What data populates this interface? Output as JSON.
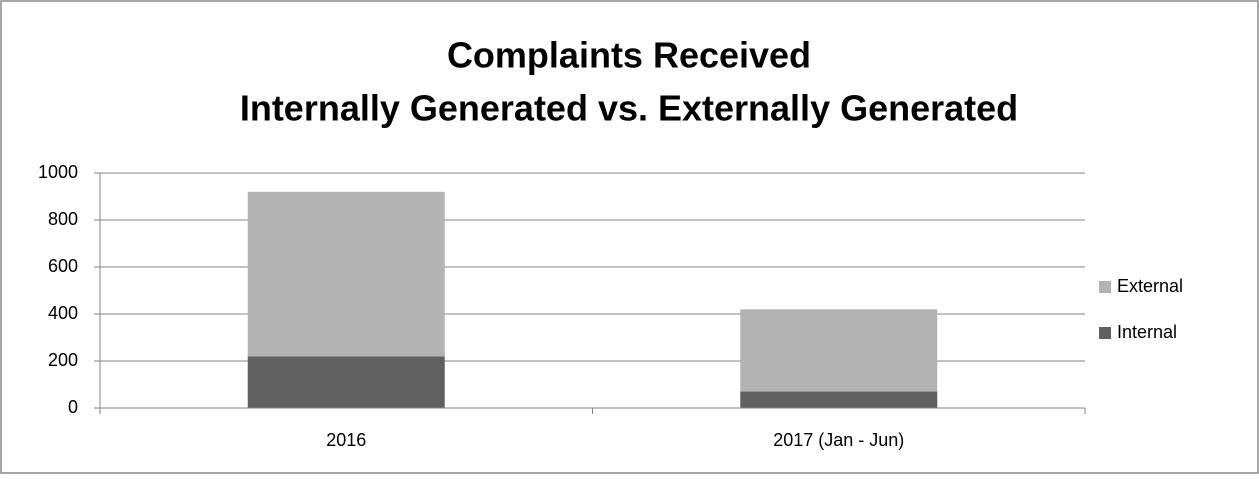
{
  "chart_data": {
    "type": "stacked_bar",
    "title": "Complaints Received",
    "subtitle": "Internally Generated vs. Externally Generated",
    "categories": [
      "2016",
      "2017 (Jan - Jun)"
    ],
    "series": [
      {
        "name": "Internal",
        "color": "#606060",
        "values": [
          220,
          70
        ]
      },
      {
        "name": "External",
        "color": "#b3b3b3",
        "values": [
          700,
          350
        ]
      }
    ],
    "ylim": [
      0,
      1000
    ],
    "yticks": [
      0,
      200,
      400,
      600,
      800,
      1000
    ],
    "grid": true,
    "legend": "right"
  }
}
